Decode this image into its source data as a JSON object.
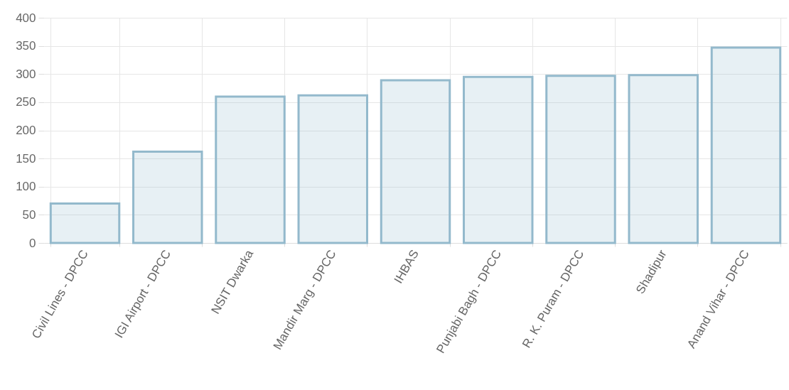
{
  "chart_data": {
    "type": "bar",
    "categories": [
      "Civil Lines - DPCC",
      "IGI Airport - DPCC",
      "NSIT Dwarka",
      "Mandir Marg - DPCC",
      "IHBAS",
      "Punjabi Bagh - DPCC",
      "R. K. Puram - DPCC",
      "Shadipur",
      "Anand Vihar - DPCC"
    ],
    "values": [
      70,
      162,
      260,
      262,
      289,
      295,
      297,
      298,
      347
    ],
    "color": "#93b9cc",
    "ylim": [
      0,
      400
    ],
    "yticks": [
      0,
      50,
      100,
      150,
      200,
      250,
      300,
      350,
      400
    ],
    "grid": true
  }
}
